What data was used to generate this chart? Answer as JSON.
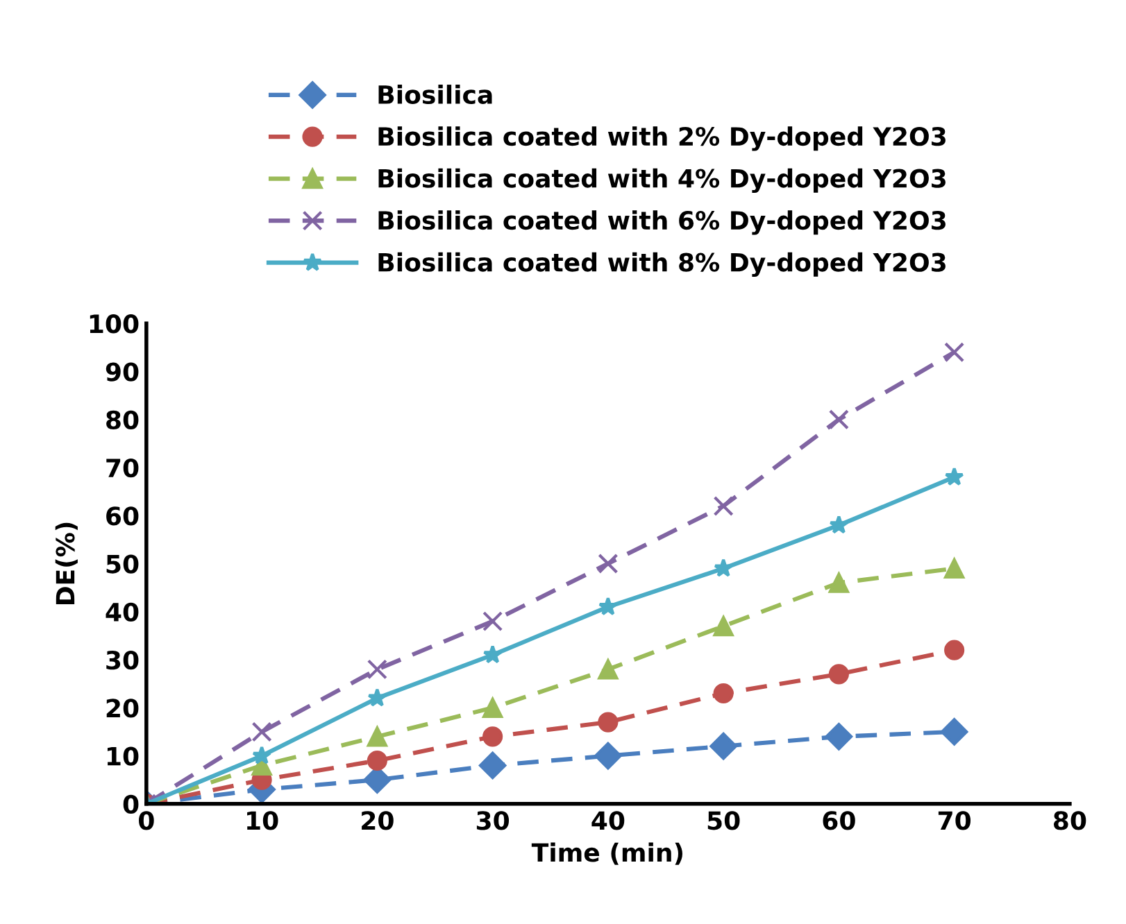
{
  "chart_data": {
    "type": "line",
    "xlabel": "Time (min)",
    "ylabel": "DE(%)",
    "x": [
      0,
      10,
      20,
      30,
      40,
      50,
      60,
      70
    ],
    "series": [
      {
        "name": "Biosilica",
        "color": "#4a7ebf",
        "marker": "diamond",
        "line_style": "dashed",
        "values": [
          0,
          3,
          5,
          8,
          10,
          12,
          14,
          15
        ]
      },
      {
        "name": "Biosilica coated with 2% Dy-doped Y2O3",
        "color": "#c0504d",
        "marker": "circle",
        "line_style": "dashed",
        "values": [
          0,
          5,
          9,
          14,
          17,
          23,
          27,
          32
        ]
      },
      {
        "name": "Biosilica coated with 4% Dy-doped Y2O3",
        "color": "#9bbb59",
        "marker": "triangle",
        "line_style": "dashed",
        "values": [
          0,
          8,
          14,
          20,
          28,
          37,
          46,
          49
        ]
      },
      {
        "name": "Biosilica coated with 6% Dy-doped Y2O3",
        "color": "#8064a2",
        "marker": "cross",
        "line_style": "dashed",
        "values": [
          0,
          15,
          28,
          38,
          50,
          62,
          80,
          94
        ]
      },
      {
        "name": "Biosilica coated with 8% Dy-doped Y2O3",
        "color": "#4bacc6",
        "marker": "star",
        "line_style": "solid",
        "values": [
          0,
          10,
          22,
          31,
          41,
          49,
          58,
          68
        ]
      }
    ],
    "xlim": [
      0,
      80
    ],
    "xticks": [
      0,
      10,
      20,
      30,
      40,
      50,
      60,
      70,
      80
    ],
    "ylim": [
      0,
      100
    ],
    "yticks": [
      0,
      10,
      20,
      30,
      40,
      50,
      60,
      70,
      80,
      90,
      100
    ],
    "grid": false,
    "legend": "top"
  }
}
